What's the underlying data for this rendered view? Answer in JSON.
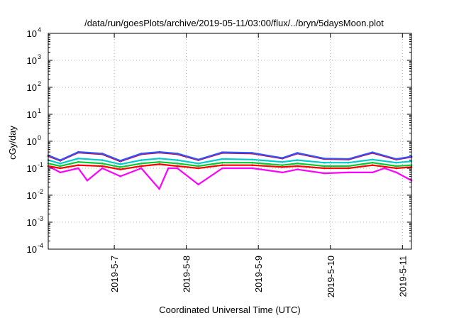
{
  "chart_data": {
    "type": "line",
    "title": "/data/run/goesPlots/archive/2019-05-11/03:00/flux/../bryn/5daysMoon.plot",
    "xlabel": "Coordinated Universal Time (UTC)",
    "ylabel": "cGy/day",
    "yscale": "log",
    "ylim": [
      0.0001,
      10000
    ],
    "y_ticks": [
      {
        "base": "10",
        "exp": "-4",
        "value": 0.0001
      },
      {
        "base": "10",
        "exp": "-3",
        "value": 0.001
      },
      {
        "base": "10",
        "exp": "-2",
        "value": 0.01
      },
      {
        "base": "10",
        "exp": "-1",
        "value": 0.1
      },
      {
        "base": "10",
        "exp": "0",
        "value": 1
      },
      {
        "base": "10",
        "exp": "1",
        "value": 10
      },
      {
        "base": "10",
        "exp": "2",
        "value": 100
      },
      {
        "base": "10",
        "exp": "3",
        "value": 1000
      },
      {
        "base": "10",
        "exp": "4",
        "value": 10000
      }
    ],
    "xlim": [
      "2019-05-06T02:00",
      "2019-05-11T03:00"
    ],
    "x_ticks": [
      {
        "label": "2019-5-7",
        "value": "2019-05-07T00:00"
      },
      {
        "label": "2019-5-8",
        "value": "2019-05-08T00:00"
      },
      {
        "label": "2019-5-9",
        "value": "2019-05-09T00:00"
      },
      {
        "label": "2019-5-10",
        "value": "2019-05-10T00:00"
      },
      {
        "label": "2019-5-11",
        "value": "2019-05-11T00:00"
      }
    ],
    "grid": true,
    "legend": "none",
    "series": [
      {
        "color": "#ff00ff",
        "role": "lowest, with deep dips",
        "x": [
          "2019-05-06T02:00",
          "2019-05-06T06:00",
          "2019-05-06T12:00",
          "2019-05-06T15:00",
          "2019-05-06T20:00",
          "2019-05-07T02:00",
          "2019-05-07T09:00",
          "2019-05-07T15:00",
          "2019-05-07T18:00",
          "2019-05-07T21:00",
          "2019-05-08T04:00",
          "2019-05-08T12:00",
          "2019-05-08T22:00",
          "2019-05-09T08:00",
          "2019-05-09T13:00",
          "2019-05-09T22:00",
          "2019-05-10T06:00",
          "2019-05-10T14:00",
          "2019-05-10T18:00",
          "2019-05-10T22:00",
          "2019-05-11T03:00"
        ],
        "values": [
          0.12,
          0.07,
          0.1,
          0.035,
          0.1,
          0.05,
          0.1,
          0.017,
          0.1,
          0.1,
          0.025,
          0.1,
          0.1,
          0.07,
          0.09,
          0.065,
          0.07,
          0.07,
          0.1,
          0.07,
          0.035
        ]
      },
      {
        "color": "#ff0000",
        "x": [
          "2019-05-06T02:00",
          "2019-05-06T06:00",
          "2019-05-06T12:00",
          "2019-05-06T20:00",
          "2019-05-07T02:00",
          "2019-05-07T09:00",
          "2019-05-07T15:00",
          "2019-05-07T21:00",
          "2019-05-08T04:00",
          "2019-05-08T12:00",
          "2019-05-08T22:00",
          "2019-05-09T08:00",
          "2019-05-09T13:00",
          "2019-05-09T22:00",
          "2019-05-10T06:00",
          "2019-05-10T14:00",
          "2019-05-10T22:00",
          "2019-05-11T03:00"
        ],
        "values": [
          0.12,
          0.1,
          0.13,
          0.12,
          0.09,
          0.12,
          0.14,
          0.12,
          0.1,
          0.13,
          0.13,
          0.11,
          0.12,
          0.1,
          0.1,
          0.13,
          0.1,
          0.11
        ]
      },
      {
        "color": "#00cc33",
        "x": [
          "2019-05-06T02:00",
          "2019-05-06T06:00",
          "2019-05-06T12:00",
          "2019-05-06T20:00",
          "2019-05-07T02:00",
          "2019-05-07T09:00",
          "2019-05-07T15:00",
          "2019-05-07T21:00",
          "2019-05-08T04:00",
          "2019-05-08T12:00",
          "2019-05-08T22:00",
          "2019-05-09T08:00",
          "2019-05-09T13:00",
          "2019-05-09T22:00",
          "2019-05-10T06:00",
          "2019-05-10T14:00",
          "2019-05-10T22:00",
          "2019-05-11T03:00"
        ],
        "values": [
          0.15,
          0.12,
          0.17,
          0.15,
          0.11,
          0.15,
          0.17,
          0.15,
          0.12,
          0.16,
          0.16,
          0.13,
          0.15,
          0.12,
          0.12,
          0.16,
          0.12,
          0.13
        ]
      },
      {
        "color": "#00cccc",
        "x": [
          "2019-05-06T02:00",
          "2019-05-06T06:00",
          "2019-05-06T12:00",
          "2019-05-06T20:00",
          "2019-05-07T02:00",
          "2019-05-07T09:00",
          "2019-05-07T15:00",
          "2019-05-07T21:00",
          "2019-05-08T04:00",
          "2019-05-08T12:00",
          "2019-05-08T22:00",
          "2019-05-09T08:00",
          "2019-05-09T13:00",
          "2019-05-09T22:00",
          "2019-05-10T06:00",
          "2019-05-10T14:00",
          "2019-05-10T22:00",
          "2019-05-11T03:00"
        ],
        "values": [
          0.2,
          0.15,
          0.23,
          0.2,
          0.14,
          0.2,
          0.23,
          0.2,
          0.15,
          0.22,
          0.21,
          0.17,
          0.2,
          0.16,
          0.16,
          0.21,
          0.16,
          0.18
        ]
      },
      {
        "color": "#cc0044",
        "x": [
          "2019-05-06T02:00",
          "2019-05-06T06:00",
          "2019-05-06T12:00",
          "2019-05-06T20:00",
          "2019-05-07T02:00",
          "2019-05-07T09:00",
          "2019-05-07T15:00",
          "2019-05-07T21:00",
          "2019-05-08T04:00",
          "2019-05-08T12:00",
          "2019-05-08T22:00",
          "2019-05-09T08:00",
          "2019-05-09T13:00",
          "2019-05-09T22:00",
          "2019-05-10T06:00",
          "2019-05-10T14:00",
          "2019-05-10T22:00",
          "2019-05-11T03:00"
        ],
        "values": [
          0.28,
          0.19,
          0.38,
          0.33,
          0.18,
          0.33,
          0.38,
          0.33,
          0.2,
          0.37,
          0.35,
          0.23,
          0.35,
          0.22,
          0.21,
          0.37,
          0.21,
          0.26
        ]
      },
      {
        "color": "#3355ff",
        "role": "highest",
        "x": [
          "2019-05-06T02:00",
          "2019-05-06T06:00",
          "2019-05-06T12:00",
          "2019-05-06T20:00",
          "2019-05-07T02:00",
          "2019-05-07T09:00",
          "2019-05-07T15:00",
          "2019-05-07T21:00",
          "2019-05-08T04:00",
          "2019-05-08T12:00",
          "2019-05-08T22:00",
          "2019-05-09T08:00",
          "2019-05-09T13:00",
          "2019-05-09T22:00",
          "2019-05-10T06:00",
          "2019-05-10T14:00",
          "2019-05-10T22:00",
          "2019-05-11T03:00"
        ],
        "values": [
          0.3,
          0.2,
          0.4,
          0.35,
          0.19,
          0.35,
          0.4,
          0.35,
          0.21,
          0.39,
          0.37,
          0.24,
          0.37,
          0.23,
          0.22,
          0.39,
          0.22,
          0.27
        ]
      }
    ]
  }
}
